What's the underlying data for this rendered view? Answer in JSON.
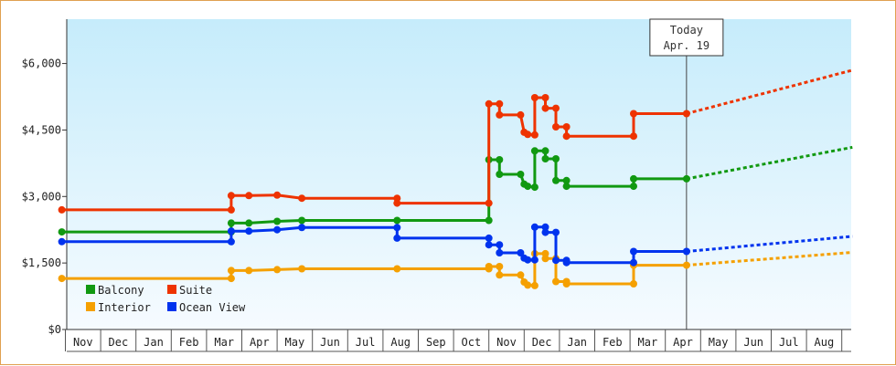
{
  "chart_data": {
    "type": "line",
    "title": "",
    "xlabel": "",
    "ylabel": "",
    "x_tick_labels": [
      "Nov",
      "Dec",
      "Jan",
      "Feb",
      "Mar",
      "Apr",
      "May",
      "Jun",
      "Jul",
      "Aug",
      "Sep",
      "Oct",
      "Nov",
      "Dec",
      "Jan",
      "Feb",
      "Mar",
      "Apr",
      "May",
      "Jun",
      "Jul",
      "Aug"
    ],
    "y_ticks": [
      0,
      1500,
      3000,
      4500,
      6000
    ],
    "y_tick_labels": [
      "$0",
      "$1,500",
      "$3,000",
      "$4,500",
      "$6,000"
    ],
    "ylim": [
      0,
      7000
    ],
    "x_range_months": [
      0,
      22.3
    ],
    "today": {
      "title": "Today",
      "date": "Apr. 19",
      "x": 17.6
    },
    "line_style": "step",
    "forecast_style": "dotted",
    "legend_placement": "bottom-left",
    "series": [
      {
        "name": "Balcony",
        "color": "#119911",
        "points": [
          [
            -0.1,
            2200
          ],
          [
            4.7,
            2200
          ],
          [
            4.7,
            2400
          ],
          [
            5.2,
            2400
          ],
          [
            6.0,
            2440
          ],
          [
            6.7,
            2460
          ],
          [
            9.4,
            2460
          ],
          [
            12.0,
            2460
          ],
          [
            12.0,
            3830
          ],
          [
            12.3,
            3830
          ],
          [
            12.3,
            3500
          ],
          [
            12.9,
            3500
          ],
          [
            13.0,
            3280
          ],
          [
            13.1,
            3230
          ],
          [
            13.3,
            3210
          ],
          [
            13.3,
            4030
          ],
          [
            13.6,
            4030
          ],
          [
            13.6,
            3850
          ],
          [
            13.9,
            3850
          ],
          [
            13.9,
            3360
          ],
          [
            14.2,
            3360
          ],
          [
            14.2,
            3230
          ],
          [
            16.1,
            3230
          ],
          [
            16.1,
            3400
          ],
          [
            17.6,
            3400
          ]
        ],
        "forecast": [
          [
            17.6,
            3400
          ],
          [
            22.3,
            4110
          ]
        ]
      },
      {
        "name": "Suite",
        "color": "#ee3300",
        "points": [
          [
            -0.1,
            2700
          ],
          [
            4.7,
            2700
          ],
          [
            4.7,
            3020
          ],
          [
            5.2,
            3020
          ],
          [
            6.0,
            3030
          ],
          [
            6.7,
            2960
          ],
          [
            9.4,
            2960
          ],
          [
            9.4,
            2850
          ],
          [
            12.0,
            2850
          ],
          [
            12.0,
            5090
          ],
          [
            12.3,
            5090
          ],
          [
            12.3,
            4840
          ],
          [
            12.9,
            4840
          ],
          [
            13.0,
            4450
          ],
          [
            13.1,
            4400
          ],
          [
            13.3,
            4390
          ],
          [
            13.3,
            5230
          ],
          [
            13.6,
            5230
          ],
          [
            13.6,
            4990
          ],
          [
            13.9,
            4990
          ],
          [
            13.9,
            4570
          ],
          [
            14.2,
            4570
          ],
          [
            14.2,
            4360
          ],
          [
            16.1,
            4360
          ],
          [
            16.1,
            4870
          ],
          [
            17.6,
            4870
          ]
        ],
        "forecast": [
          [
            17.6,
            4870
          ],
          [
            22.3,
            5850
          ]
        ]
      },
      {
        "name": "Interior",
        "color": "#f5a000",
        "points": [
          [
            -0.1,
            1150
          ],
          [
            4.7,
            1150
          ],
          [
            4.7,
            1330
          ],
          [
            5.2,
            1330
          ],
          [
            6.0,
            1350
          ],
          [
            6.7,
            1370
          ],
          [
            9.4,
            1370
          ],
          [
            12.0,
            1370
          ],
          [
            12.0,
            1420
          ],
          [
            12.3,
            1420
          ],
          [
            12.3,
            1230
          ],
          [
            12.9,
            1230
          ],
          [
            13.0,
            1070
          ],
          [
            13.1,
            1000
          ],
          [
            13.3,
            990
          ],
          [
            13.3,
            1710
          ],
          [
            13.6,
            1710
          ],
          [
            13.6,
            1600
          ],
          [
            13.9,
            1600
          ],
          [
            13.9,
            1080
          ],
          [
            14.2,
            1080
          ],
          [
            14.2,
            1030
          ],
          [
            16.1,
            1030
          ],
          [
            16.1,
            1450
          ],
          [
            17.6,
            1450
          ]
        ],
        "forecast": [
          [
            17.6,
            1450
          ],
          [
            22.3,
            1740
          ]
        ]
      },
      {
        "name": "Ocean View",
        "color": "#0033ee",
        "points": [
          [
            -0.1,
            1980
          ],
          [
            4.7,
            1980
          ],
          [
            4.7,
            2220
          ],
          [
            5.2,
            2220
          ],
          [
            6.0,
            2250
          ],
          [
            6.7,
            2300
          ],
          [
            9.4,
            2300
          ],
          [
            9.4,
            2060
          ],
          [
            12.0,
            2060
          ],
          [
            12.0,
            1910
          ],
          [
            12.3,
            1910
          ],
          [
            12.3,
            1730
          ],
          [
            12.9,
            1730
          ],
          [
            13.0,
            1610
          ],
          [
            13.1,
            1570
          ],
          [
            13.3,
            1570
          ],
          [
            13.3,
            2310
          ],
          [
            13.6,
            2310
          ],
          [
            13.6,
            2190
          ],
          [
            13.9,
            2190
          ],
          [
            13.9,
            1560
          ],
          [
            14.2,
            1560
          ],
          [
            14.2,
            1510
          ],
          [
            16.1,
            1510
          ],
          [
            16.1,
            1760
          ],
          [
            17.6,
            1760
          ]
        ],
        "forecast": [
          [
            17.6,
            1760
          ],
          [
            22.3,
            2100
          ]
        ]
      }
    ]
  }
}
